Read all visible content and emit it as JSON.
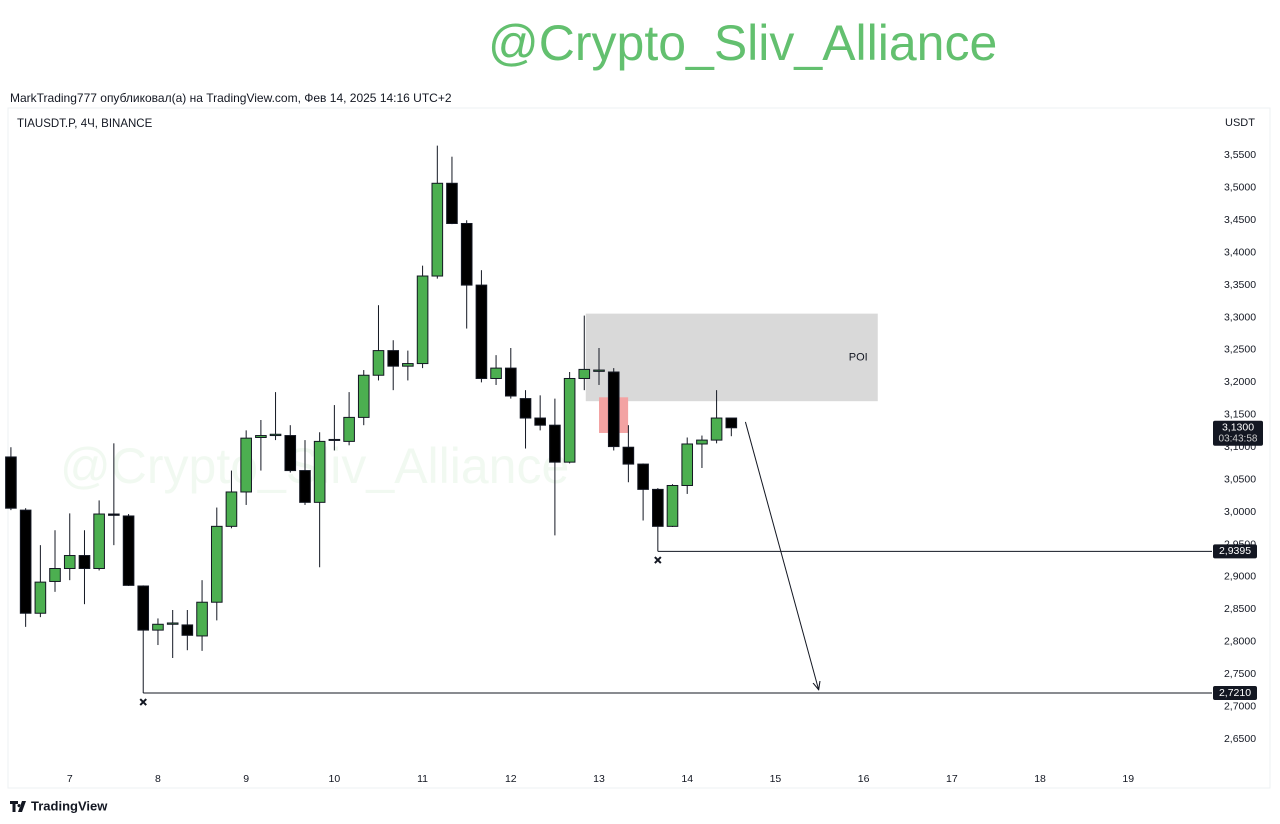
{
  "header": {
    "channel": "@Crypto_Sliv_Alliance",
    "author_line": "MarkTrading777 опубликовал(а) на TradingView.com, Фев 14, 2025 14:16 UTC+2"
  },
  "chart_data": {
    "type": "candlestick",
    "symbol": "TIAUSDT.P, 4Ч, BINANCE",
    "currency": "USDT",
    "watermark": "@Crypto_Sliv_Alliance",
    "up_color": "#4caf50",
    "down_color": "#000000",
    "x": [
      6.333,
      6.5,
      6.667,
      6.833,
      7,
      7.167,
      7.333,
      7.5,
      7.667,
      7.833,
      8,
      8.167,
      8.333,
      8.5,
      8.667,
      8.833,
      9,
      9.167,
      9.333,
      9.5,
      9.667,
      9.833,
      10,
      10.167,
      10.333,
      10.5,
      10.667,
      10.833,
      11,
      11.167,
      11.333,
      11.5,
      11.667,
      11.833,
      12,
      12.167,
      12.333,
      12.5,
      12.667,
      12.833,
      13,
      13.167,
      13.333,
      13.5,
      13.667,
      13.833,
      14,
      14.167,
      14.333,
      14.5
    ],
    "open": [
      3.085,
      3.003,
      2.844,
      2.893,
      2.913,
      2.933,
      2.913,
      2.997,
      2.994,
      2.886,
      2.818,
      2.827,
      2.826,
      2.809,
      2.861,
      2.978,
      3.031,
      3.115,
      3.118,
      3.118,
      3.064,
      3.015,
      3.111,
      3.109,
      3.146,
      3.211,
      3.249,
      3.225,
      3.229,
      3.364,
      3.507,
      3.445,
      3.35,
      3.206,
      3.222,
      3.175,
      3.145,
      3.134,
      3.077,
      3.206,
      3.217,
      3.216,
      3.1,
      3.074,
      3.035,
      2.978,
      3.041,
      3.105,
      3.111,
      3.145
    ],
    "high": [
      3.1,
      3.006,
      2.949,
      2.972,
      2.998,
      2.972,
      3.018,
      3.106,
      2.997,
      2.887,
      2.836,
      2.849,
      2.849,
      2.895,
      3.007,
      3.064,
      3.126,
      3.142,
      3.185,
      3.134,
      3.111,
      3.123,
      3.165,
      3.185,
      3.219,
      3.319,
      3.265,
      3.249,
      3.38,
      3.565,
      3.548,
      3.45,
      3.373,
      3.242,
      3.253,
      3.188,
      3.18,
      3.175,
      3.216,
      3.303,
      3.253,
      3.222,
      3.134,
      3.075,
      3.037,
      3.043,
      3.115,
      3.118,
      3.188,
      3.145
    ],
    "low": [
      3.003,
      2.823,
      2.838,
      2.877,
      2.895,
      2.858,
      2.91,
      2.949,
      2.886,
      2.721,
      2.795,
      2.775,
      2.787,
      2.786,
      2.833,
      2.975,
      3.011,
      3.064,
      3.111,
      3.061,
      3.011,
      2.915,
      3.095,
      3.103,
      3.134,
      3.203,
      3.188,
      3.203,
      3.222,
      3.36,
      3.444,
      3.283,
      3.2,
      3.196,
      3.175,
      3.098,
      3.126,
      2.964,
      3.075,
      3.188,
      3.196,
      3.095,
      3.046,
      2.987,
      2.9395,
      2.977,
      3.028,
      3.068,
      3.106,
      3.117
    ],
    "close": [
      3.006,
      2.844,
      2.892,
      2.913,
      2.933,
      2.913,
      2.997,
      2.995,
      2.887,
      2.818,
      2.827,
      2.829,
      2.81,
      2.861,
      2.978,
      3.031,
      3.114,
      3.118,
      3.12,
      3.064,
      3.015,
      3.109,
      3.112,
      3.146,
      3.211,
      3.249,
      3.225,
      3.229,
      3.364,
      3.507,
      3.445,
      3.35,
      3.206,
      3.222,
      3.179,
      3.145,
      3.134,
      3.077,
      3.206,
      3.22,
      3.219,
      3.101,
      3.074,
      3.035,
      2.978,
      3.041,
      3.105,
      3.111,
      3.145,
      3.13
    ],
    "xlim": [
      6.3,
      19.87
    ],
    "xticks": [
      7,
      8,
      9,
      10,
      11,
      12,
      13,
      14,
      15,
      16,
      17,
      18,
      19
    ],
    "ylim": [
      2.61,
      3.62
    ],
    "yticks": [
      {
        "value": 2.65,
        "label": "2,6500"
      },
      {
        "value": 2.7,
        "label": "2,7000"
      },
      {
        "value": 2.75,
        "label": "2,7500"
      },
      {
        "value": 2.8,
        "label": "2,8000"
      },
      {
        "value": 2.85,
        "label": "2,8500"
      },
      {
        "value": 2.9,
        "label": "2,9000"
      },
      {
        "value": 2.95,
        "label": "2,9500"
      },
      {
        "value": 3.0,
        "label": "3,0000"
      },
      {
        "value": 3.05,
        "label": "3,0500"
      },
      {
        "value": 3.1,
        "label": "3,1000"
      },
      {
        "value": 3.15,
        "label": "3,1500"
      },
      {
        "value": 3.2,
        "label": "3,2000"
      },
      {
        "value": 3.25,
        "label": "3,2500"
      },
      {
        "value": 3.3,
        "label": "3,3000"
      },
      {
        "value": 3.35,
        "label": "3,3500"
      },
      {
        "value": 3.4,
        "label": "3,4000"
      },
      {
        "value": 3.45,
        "label": "3,4500"
      },
      {
        "value": 3.5,
        "label": "3,5000"
      },
      {
        "value": 3.55,
        "label": "3,5500"
      }
    ],
    "zones": [
      {
        "label": "POI",
        "x": [
          12.85,
          16.16
        ],
        "y": [
          3.171,
          3.306
        ],
        "color": "#d9d9d9"
      },
      {
        "x": [
          13.0,
          13.33
        ],
        "y": [
          3.122,
          3.177
        ],
        "color": "#f3a3a3"
      }
    ],
    "levels": [
      {
        "value": 2.9395,
        "label": "2,9395",
        "from": 13.667
      },
      {
        "value": 2.721,
        "label": "2,7210",
        "from": 7.833
      }
    ],
    "markers": [
      {
        "x": 7.833,
        "y": 2.707
      },
      {
        "x": 13.667,
        "y": 2.926
      }
    ],
    "arrow": {
      "x": [
        14.66,
        15.49
      ],
      "y": [
        3.139,
        2.726
      ]
    },
    "price_label": {
      "value": 3.13,
      "label": "3,1300",
      "timer": "03:43:58"
    }
  },
  "footer": {
    "brand": "TradingView"
  }
}
